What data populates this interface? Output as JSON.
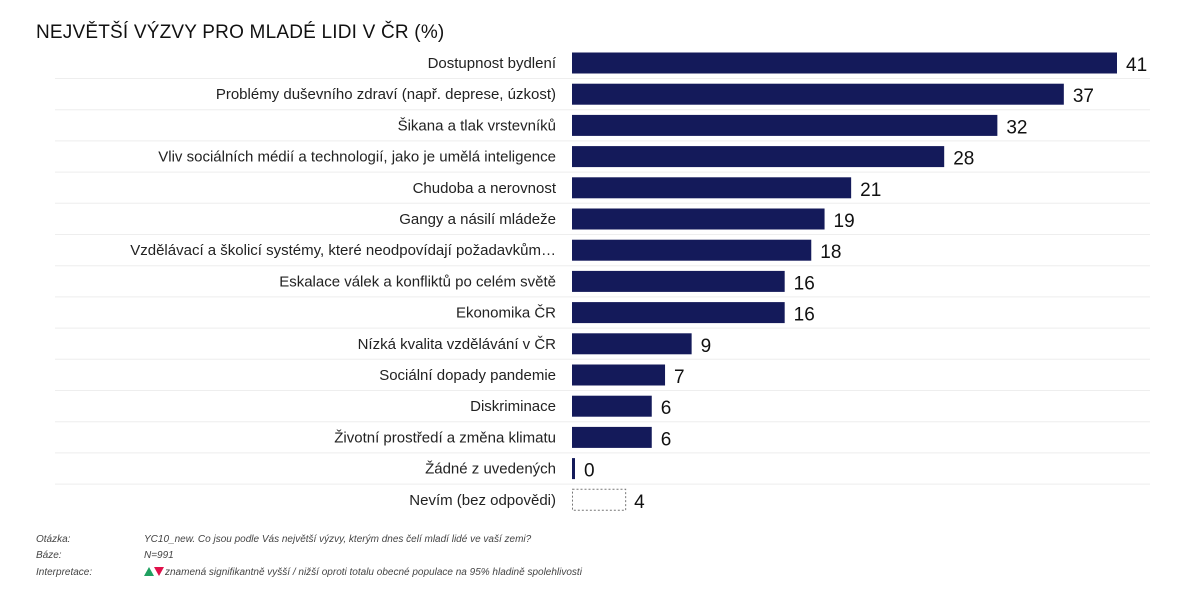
{
  "chart_data": {
    "type": "bar",
    "orientation": "horizontal",
    "title": "NEJVĚTŠÍ VÝZVY PRO MLADÉ LIDI V ČR (%)",
    "categories": [
      "Dostupnost bydlení",
      "Problémy duševního zdraví (např. deprese, úzkost)",
      "Šikana a tlak vrstevníků",
      "Vliv sociálních médií a technologií, jako je umělá inteligence",
      "Chudoba a nerovnost",
      "Gangy a násilí mládeže",
      "Vzdělávací a školicí systémy, které neodpovídají požadavkům…",
      "Eskalace válek a konfliktů po celém světě",
      "Ekonomika ČR",
      "Nízká kvalita vzdělávání v ČR",
      "Sociální dopady pandemie",
      "Diskriminace",
      "Životní prostředí a změna klimatu",
      "Žádné z uvedených",
      "Nevím (bez odpovědi)"
    ],
    "values": [
      41,
      37,
      32,
      28,
      21,
      19,
      18,
      16,
      16,
      9,
      7,
      6,
      6,
      0,
      4
    ],
    "styles": [
      "solid",
      "solid",
      "solid",
      "solid",
      "solid",
      "solid",
      "solid",
      "solid",
      "solid",
      "solid",
      "solid",
      "solid",
      "solid",
      "solid",
      "dotted-outline"
    ],
    "bar_color": "#141a5a",
    "xlim": [
      0,
      41
    ],
    "grid": false
  },
  "footer": {
    "question_label": "Otázka:",
    "question": "YC10_new. Co jsou podle Vás největší výzvy, kterým dnes čelí mladí lidé ve vaší zemi?",
    "base_label": "Báze:",
    "base": "N=991",
    "interp_label": "Interpretace:",
    "interp": "znamená signifikantně vyšší / nižší oproti totalu obecné populace na 95% hladině spolehlivosti",
    "up_color": "#1fa060",
    "down_color": "#e0104a"
  }
}
